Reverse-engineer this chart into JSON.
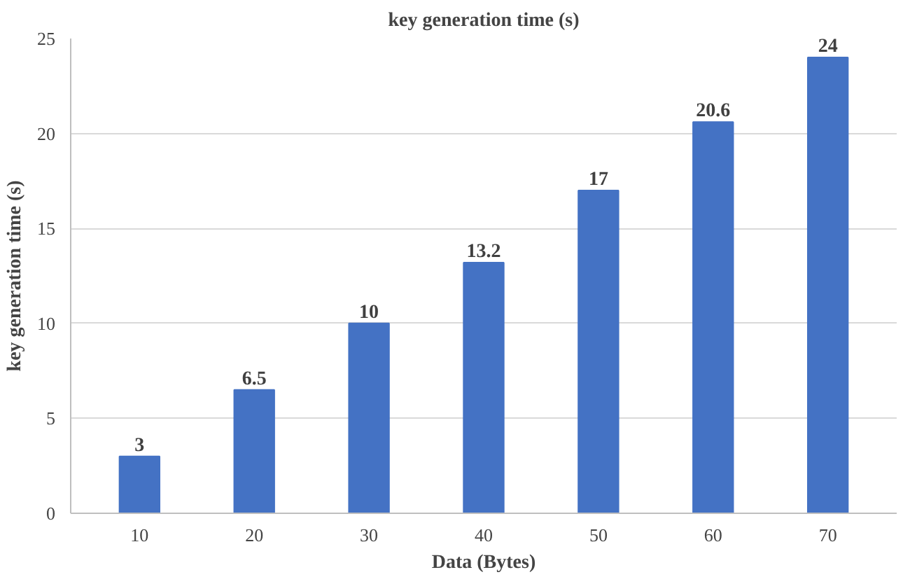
{
  "chart_data": {
    "type": "bar",
    "title": "key generation time (s)",
    "xlabel": "Data (Bytes)",
    "ylabel": "key generation time (s)",
    "categories": [
      "10",
      "20",
      "30",
      "40",
      "50",
      "60",
      "70"
    ],
    "values": [
      3,
      6.5,
      10,
      13.2,
      17,
      20.6,
      24
    ],
    "color": "#4472c4",
    "ylim": [
      0,
      25
    ],
    "yticks": [
      0,
      5,
      10,
      15,
      20,
      25
    ],
    "grid": "y",
    "data_labels": true
  }
}
